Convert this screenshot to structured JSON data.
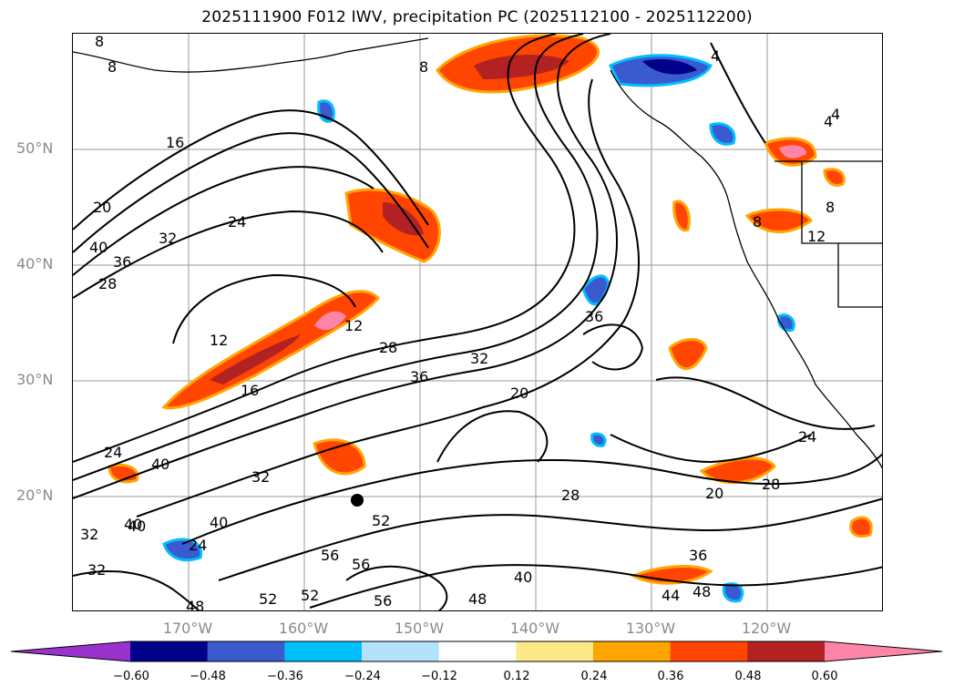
{
  "title": "2025111900 F012 IWV, precipitation PC (2025112100 - 2025112200)",
  "lat_labels": [
    "50°N",
    "40°N",
    "30°N",
    "20°N"
  ],
  "lon_labels": [
    "170°W",
    "160°W",
    "150°W",
    "140°W",
    "130°W",
    "120°W"
  ],
  "colorbar": {
    "colors": [
      "#9932cc",
      "#00008b",
      "#3a5bd0",
      "#00bfff",
      "#b3e2fa",
      "#ffffff",
      "#ffe88a",
      "#ffa500",
      "#ff4500",
      "#b22222",
      "#ff85a8"
    ],
    "ticks": [
      "−0.60",
      "−0.48",
      "−0.36",
      "−0.24",
      "−0.12",
      "0.12",
      "0.24",
      "0.36",
      "0.48",
      "0.60"
    ]
  },
  "contour_labels": [
    "8",
    "8",
    "8",
    "4",
    "4",
    "16",
    "20",
    "24",
    "40",
    "36",
    "32",
    "28",
    "12",
    "16",
    "12",
    "28",
    "36",
    "32",
    "20",
    "36",
    "24",
    "40",
    "32",
    "24",
    "4",
    "8",
    "12",
    "8",
    "28",
    "20",
    "28",
    "40",
    "48",
    "40",
    "52",
    "56",
    "56",
    "52",
    "52",
    "56",
    "48",
    "40",
    "44",
    "48",
    "32",
    "36",
    "32",
    "24",
    "40"
  ]
}
